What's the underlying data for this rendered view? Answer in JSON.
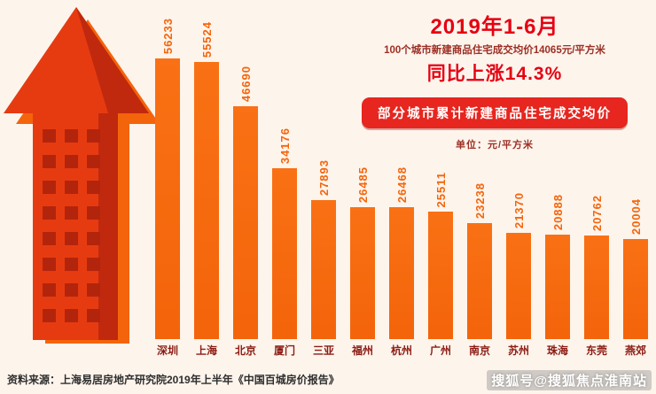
{
  "header": {
    "period": "2019年1-6月",
    "subtitle": "100个城市新建商品住宅成交均价14065元/平方米",
    "yoy": "同比上涨14.3%",
    "banner": "部分城市累计新建商品住宅成交均价",
    "unit": "单位：元/平方米"
  },
  "chart_data": {
    "type": "bar",
    "title": "部分城市累计新建商品住宅成交均价",
    "unit": "元/平方米",
    "categories": [
      "深圳",
      "上海",
      "北京",
      "厦门",
      "三亚",
      "福州",
      "杭州",
      "广州",
      "南京",
      "苏州",
      "珠海",
      "东莞",
      "燕郊"
    ],
    "values": [
      56233,
      55524,
      46690,
      34176,
      27893,
      26485,
      26468,
      25511,
      23238,
      21370,
      20888,
      20762,
      20004
    ],
    "xlabel": "",
    "ylabel": "元/平方米",
    "ylim": [
      0,
      60000
    ],
    "grid": false,
    "legend": "none",
    "value_labels": "rotated-90-above-bars"
  },
  "colors": {
    "background": "#fdf4ec",
    "bar": "#f4640a",
    "value_label": "#f4650c",
    "city_label": "#8c1c13",
    "headline_red": "#e60012",
    "subtitle_red": "#9c2f24",
    "banner_bg": "#e6261f",
    "arrow_front": "#e63b11",
    "arrow_dark": "#c0290e"
  },
  "footer": {
    "source": "资料来源：上海易居房地产研究院2019年上半年《中国百城房价报告》",
    "watermark": "搜狐号@搜狐焦点淮南站"
  }
}
